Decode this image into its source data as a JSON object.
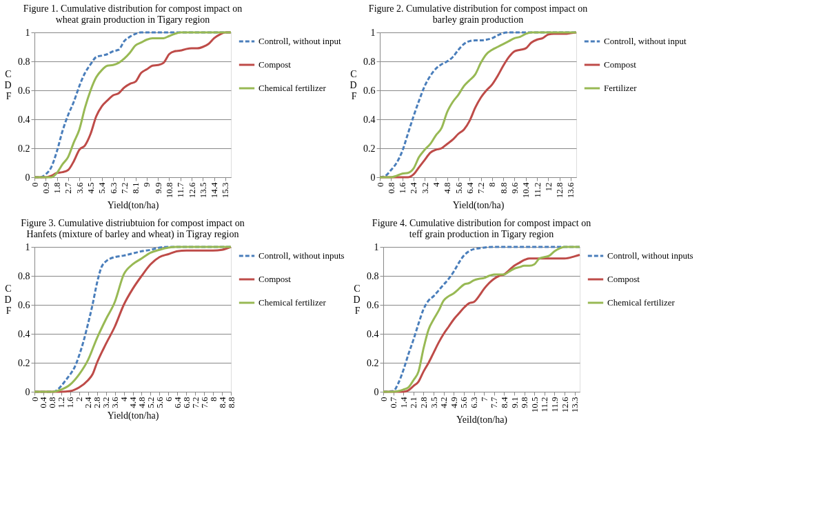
{
  "chart_data": [
    {
      "type": "line",
      "title": "Figure 1. Cumulative distribution for compost impact on wheat grain production in Tigary region",
      "xlabel": "Yield(ton/ha)",
      "ylabel": "CDF",
      "xlim": [
        0,
        15.75
      ],
      "xticks": [
        0,
        0.9,
        1.8,
        2.7,
        3.6,
        4.5,
        5.4,
        6.3,
        7.2,
        8.1,
        9,
        9.9,
        10.8,
        11.7,
        12.6,
        13.5,
        14.4,
        15.3
      ],
      "ylim": [
        0,
        1
      ],
      "yticks": [
        0,
        0.2,
        0.4,
        0.6,
        0.8,
        1
      ],
      "grid": "y",
      "legend": "right",
      "marker": "none",
      "series": [
        {
          "name": "Controll, without input",
          "color": "#4a7ebb",
          "line_style": "dashed",
          "x": [
            0,
            0.45,
            0.9,
            1.35,
            1.8,
            2.25,
            2.7,
            3.15,
            3.6,
            4.05,
            4.5,
            4.95,
            5.4,
            5.85,
            6.3,
            6.75,
            7.2,
            7.65,
            8.1,
            8.55,
            15.75
          ],
          "values": [
            0,
            0,
            0.02,
            0.07,
            0.18,
            0.32,
            0.43,
            0.52,
            0.63,
            0.72,
            0.78,
            0.83,
            0.84,
            0.85,
            0.87,
            0.88,
            0.94,
            0.97,
            0.99,
            1,
            1
          ]
        },
        {
          "name": "Compost",
          "color": "#be4b48",
          "line_style": "solid",
          "x": [
            0,
            0.9,
            1.35,
            1.8,
            2.25,
            2.7,
            3.15,
            3.6,
            4.05,
            4.5,
            4.95,
            5.4,
            5.85,
            6.3,
            6.75,
            7.2,
            7.65,
            8.1,
            8.55,
            9.0,
            9.45,
            9.9,
            10.35,
            10.8,
            11.25,
            11.7,
            12.15,
            12.6,
            13.05,
            13.5,
            13.95,
            14.4,
            14.85,
            15.3,
            15.75
          ],
          "values": [
            0,
            0,
            0.01,
            0.03,
            0.035,
            0.05,
            0.11,
            0.19,
            0.22,
            0.3,
            0.42,
            0.49,
            0.53,
            0.565,
            0.58,
            0.62,
            0.645,
            0.66,
            0.72,
            0.745,
            0.77,
            0.775,
            0.79,
            0.85,
            0.87,
            0.875,
            0.885,
            0.89,
            0.89,
            0.9,
            0.92,
            0.96,
            0.985,
            1,
            1
          ]
        },
        {
          "name": "Chemical fertilizer",
          "color": "#98b954",
          "line_style": "solid",
          "x": [
            0,
            1.35,
            1.8,
            2.25,
            2.7,
            3.15,
            3.6,
            4.05,
            4.5,
            4.95,
            5.4,
            5.85,
            6.3,
            6.75,
            7.2,
            7.65,
            8.1,
            8.55,
            9.0,
            9.45,
            9.9,
            10.35,
            10.8,
            11.25,
            11.7,
            15.75
          ],
          "values": [
            0,
            0,
            0.03,
            0.09,
            0.14,
            0.24,
            0.33,
            0.48,
            0.6,
            0.69,
            0.74,
            0.77,
            0.775,
            0.79,
            0.82,
            0.86,
            0.91,
            0.93,
            0.95,
            0.96,
            0.96,
            0.96,
            0.975,
            0.99,
            1,
            1
          ]
        }
      ]
    },
    {
      "type": "line",
      "title": "Figure 2. Cumulative distribution for compost impact on barley grain production",
      "xlabel": "Yield(ton/ha)",
      "ylabel": "CDF",
      "xlim": [
        0,
        14.0
      ],
      "xticks": [
        0,
        0.8,
        1.6,
        2.4,
        3.2,
        4,
        4.8,
        5.6,
        6.4,
        7.2,
        8,
        8.8,
        9.6,
        10.4,
        11.2,
        12,
        12.8,
        13.6
      ],
      "ylim": [
        0,
        1
      ],
      "yticks": [
        0,
        0.2,
        0.4,
        0.6,
        0.8,
        1
      ],
      "grid": "y",
      "legend": "right",
      "marker": "none",
      "series": [
        {
          "name": "Controll, without input",
          "color": "#4a7ebb",
          "line_style": "dashed",
          "x": [
            0,
            0.4,
            0.8,
            1.2,
            1.6,
            2.0,
            2.4,
            2.8,
            3.2,
            3.6,
            4.0,
            4.4,
            4.8,
            5.2,
            5.6,
            6.0,
            6.4,
            6.8,
            7.2,
            7.6,
            8.0,
            8.4,
            8.8,
            9.2,
            14.0
          ],
          "values": [
            0,
            0.01,
            0.05,
            0.1,
            0.18,
            0.3,
            0.42,
            0.53,
            0.63,
            0.7,
            0.75,
            0.78,
            0.8,
            0.83,
            0.88,
            0.92,
            0.94,
            0.945,
            0.945,
            0.95,
            0.96,
            0.98,
            0.995,
            1,
            1
          ]
        },
        {
          "name": "Compost",
          "color": "#be4b48",
          "line_style": "solid",
          "x": [
            0,
            1.2,
            1.6,
            2.0,
            2.4,
            2.8,
            3.2,
            3.6,
            4.0,
            4.4,
            4.8,
            5.2,
            5.6,
            6.0,
            6.4,
            6.8,
            7.2,
            7.6,
            8.0,
            8.4,
            8.8,
            9.2,
            9.6,
            10.0,
            10.4,
            10.8,
            11.2,
            11.6,
            12.0,
            12.4,
            12.8,
            13.2,
            13.6,
            14.0
          ],
          "values": [
            0,
            0,
            0,
            0,
            0.02,
            0.07,
            0.12,
            0.17,
            0.19,
            0.2,
            0.23,
            0.26,
            0.3,
            0.33,
            0.39,
            0.48,
            0.55,
            0.6,
            0.64,
            0.7,
            0.77,
            0.83,
            0.87,
            0.88,
            0.89,
            0.93,
            0.95,
            0.96,
            0.985,
            0.99,
            0.99,
            0.99,
            0.995,
            1
          ]
        },
        {
          "name": "Fertilizer",
          "color": "#98b954",
          "line_style": "solid",
          "x": [
            0,
            0.8,
            1.2,
            1.6,
            2.0,
            2.4,
            2.8,
            3.2,
            3.6,
            4.0,
            4.4,
            4.8,
            5.2,
            5.6,
            6.0,
            6.4,
            6.8,
            7.2,
            7.6,
            8.0,
            8.4,
            8.8,
            9.2,
            9.6,
            10.0,
            10.4,
            10.8,
            14.0
          ],
          "values": [
            0,
            0,
            0.01,
            0.025,
            0.03,
            0.06,
            0.14,
            0.19,
            0.23,
            0.29,
            0.34,
            0.45,
            0.52,
            0.57,
            0.63,
            0.67,
            0.71,
            0.79,
            0.85,
            0.88,
            0.9,
            0.92,
            0.94,
            0.96,
            0.97,
            0.99,
            1,
            1
          ]
        }
      ]
    },
    {
      "type": "line",
      "title": "Figure 3. Cumulative distriubtuion for compost impact on Hanfets (mixture of barley and wheat) in Tigray region",
      "xlabel": "Yield(ton/ha)",
      "ylabel": "CDF",
      "xlim": [
        0,
        8.8
      ],
      "xticks": [
        0,
        0.4,
        0.8,
        1.2,
        1.6,
        2,
        2.4,
        2.8,
        3.2,
        3.6,
        4,
        4.4,
        4.8,
        5.2,
        5.6,
        6,
        6.4,
        6.8,
        7.2,
        7.6,
        8,
        8.4,
        8.8
      ],
      "ylim": [
        0,
        1
      ],
      "yticks": [
        0,
        0.2,
        0.4,
        0.6,
        0.8,
        1
      ],
      "grid": "y",
      "legend": "right",
      "marker": "none",
      "series": [
        {
          "name": "Controll, without inputs",
          "color": "#4a7ebb",
          "line_style": "dashed",
          "x": [
            0,
            0.8,
            1.0,
            1.2,
            1.4,
            1.6,
            1.8,
            2.0,
            2.2,
            2.4,
            2.6,
            2.8,
            3.0,
            3.2,
            3.4,
            3.6,
            4.0,
            4.4,
            4.8,
            5.2,
            5.6,
            6.0,
            8.8
          ],
          "values": [
            0,
            0,
            0.01,
            0.04,
            0.08,
            0.12,
            0.17,
            0.25,
            0.35,
            0.47,
            0.6,
            0.75,
            0.86,
            0.9,
            0.92,
            0.93,
            0.94,
            0.955,
            0.97,
            0.98,
            0.995,
            1,
            1
          ]
        },
        {
          "name": "Compost",
          "color": "#be4b48",
          "line_style": "solid",
          "x": [
            0,
            1.2,
            1.6,
            2.0,
            2.4,
            2.6,
            2.8,
            3.2,
            3.6,
            4.0,
            4.4,
            4.8,
            5.2,
            5.6,
            6.0,
            6.4,
            6.8,
            7.2,
            7.6,
            8.0,
            8.4,
            8.8
          ],
          "values": [
            0,
            0,
            0.005,
            0.03,
            0.08,
            0.12,
            0.2,
            0.33,
            0.45,
            0.6,
            0.71,
            0.8,
            0.88,
            0.93,
            0.95,
            0.97,
            0.975,
            0.975,
            0.975,
            0.975,
            0.98,
            1
          ]
        },
        {
          "name": "Chemical fertilizer",
          "color": "#98b954",
          "line_style": "solid",
          "x": [
            0,
            0.8,
            1.2,
            1.6,
            2.0,
            2.4,
            2.8,
            3.2,
            3.6,
            4.0,
            4.4,
            4.8,
            5.2,
            5.6,
            6.0,
            6.4,
            8.8
          ],
          "values": [
            0,
            0,
            0.015,
            0.05,
            0.12,
            0.22,
            0.37,
            0.5,
            0.62,
            0.81,
            0.88,
            0.92,
            0.96,
            0.98,
            0.995,
            1,
            1
          ]
        }
      ]
    },
    {
      "type": "line",
      "title": "Figure 4. Cumulative distribution for compost impact on teff grain production in Tigary region",
      "xlabel": "Yeild(ton/ha)",
      "ylabel": "CDF",
      "xlim": [
        0,
        13.65
      ],
      "xticks": [
        0,
        0.7,
        1.4,
        2.1,
        2.8,
        3.5,
        4.2,
        4.9,
        5.6,
        6.3,
        7,
        7.7,
        8.4,
        9.1,
        9.8,
        10.5,
        11.2,
        11.9,
        12.6,
        13.3
      ],
      "ylim": [
        0,
        1
      ],
      "yticks": [
        0,
        0.2,
        0.4,
        0.6,
        0.8,
        1
      ],
      "grid": "y",
      "legend": "right",
      "marker": "none",
      "series": [
        {
          "name": "Controll, without inputs",
          "color": "#4a7ebb",
          "line_style": "dashed",
          "x": [
            0,
            0.7,
            1.05,
            1.4,
            1.75,
            2.1,
            2.45,
            2.8,
            3.15,
            3.5,
            3.85,
            4.2,
            4.55,
            4.9,
            5.25,
            5.6,
            5.95,
            6.3,
            6.65,
            7.0,
            7.7,
            13.65
          ],
          "values": [
            0,
            0.005,
            0.06,
            0.15,
            0.26,
            0.36,
            0.47,
            0.57,
            0.63,
            0.66,
            0.7,
            0.74,
            0.78,
            0.83,
            0.89,
            0.94,
            0.97,
            0.985,
            0.99,
            0.995,
            1,
            1
          ]
        },
        {
          "name": "Compost",
          "color": "#be4b48",
          "line_style": "solid",
          "x": [
            0,
            1.4,
            1.75,
            2.1,
            2.45,
            2.8,
            3.15,
            3.5,
            3.85,
            4.2,
            4.55,
            4.9,
            5.25,
            5.6,
            5.95,
            6.3,
            6.65,
            7.0,
            7.35,
            7.7,
            8.05,
            8.4,
            8.75,
            9.1,
            9.45,
            9.8,
            10.15,
            10.5,
            11.2,
            12.6,
            13.3,
            13.65
          ],
          "values": [
            0,
            0,
            0.01,
            0.04,
            0.07,
            0.14,
            0.2,
            0.27,
            0.34,
            0.4,
            0.45,
            0.5,
            0.54,
            0.58,
            0.61,
            0.62,
            0.66,
            0.71,
            0.75,
            0.78,
            0.8,
            0.81,
            0.84,
            0.87,
            0.89,
            0.91,
            0.92,
            0.92,
            0.92,
            0.92,
            0.935,
            0.945
          ]
        },
        {
          "name": "Chemical fertilizer",
          "color": "#98b954",
          "line_style": "solid",
          "x": [
            0,
            0.7,
            1.05,
            1.4,
            1.75,
            2.1,
            2.45,
            2.8,
            3.15,
            3.5,
            3.85,
            4.2,
            4.55,
            4.9,
            5.25,
            5.6,
            5.95,
            6.3,
            6.65,
            7.0,
            7.35,
            7.7,
            8.05,
            8.4,
            8.75,
            9.1,
            9.45,
            9.8,
            10.15,
            10.5,
            10.85,
            11.2,
            11.55,
            11.9,
            12.25,
            12.6,
            13.65
          ],
          "values": [
            0,
            0,
            0.005,
            0.015,
            0.03,
            0.08,
            0.14,
            0.3,
            0.43,
            0.5,
            0.56,
            0.63,
            0.66,
            0.68,
            0.71,
            0.74,
            0.75,
            0.77,
            0.78,
            0.785,
            0.8,
            0.81,
            0.81,
            0.81,
            0.83,
            0.85,
            0.86,
            0.87,
            0.87,
            0.88,
            0.92,
            0.93,
            0.94,
            0.97,
            0.99,
            1,
            1
          ]
        }
      ]
    }
  ]
}
